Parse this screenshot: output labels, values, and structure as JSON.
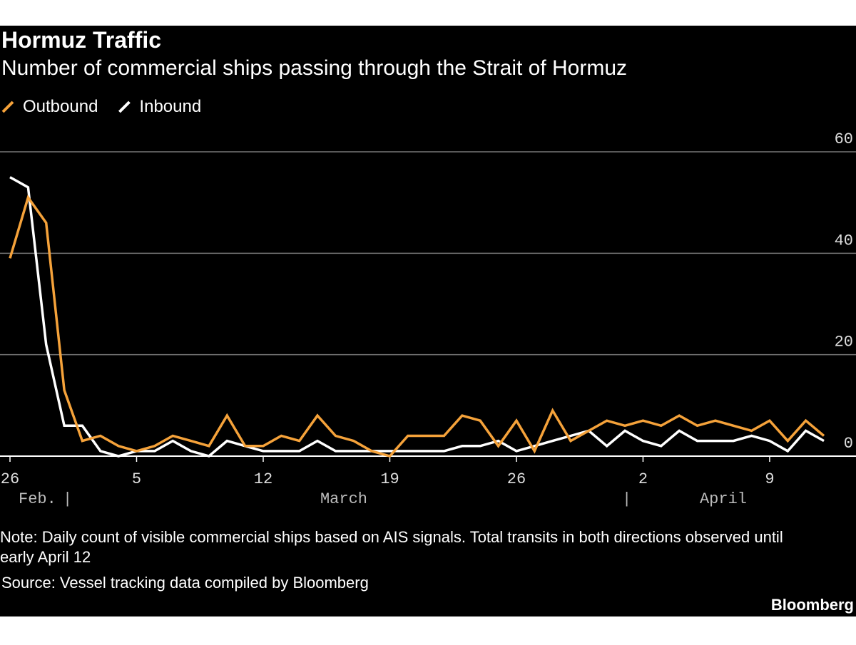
{
  "chart_data": {
    "type": "line",
    "title": "Hormuz Traffic",
    "subtitle": "Number of commercial ships passing through the Strait of Hormuz",
    "x": [
      "Feb 26",
      "Feb 27",
      "Feb 28",
      "Mar 1",
      "Mar 2",
      "Mar 3",
      "Mar 4",
      "Mar 5",
      "Mar 6",
      "Mar 7",
      "Mar 8",
      "Mar 9",
      "Mar 10",
      "Mar 11",
      "Mar 12",
      "Mar 13",
      "Mar 14",
      "Mar 15",
      "Mar 16",
      "Mar 17",
      "Mar 18",
      "Mar 19",
      "Mar 20",
      "Mar 21",
      "Mar 22",
      "Mar 23",
      "Mar 24",
      "Mar 25",
      "Mar 26",
      "Mar 27",
      "Mar 28",
      "Mar 29",
      "Mar 30",
      "Mar 31",
      "Apr 1",
      "Apr 2",
      "Apr 3",
      "Apr 4",
      "Apr 5",
      "Apr 6",
      "Apr 7",
      "Apr 8",
      "Apr 9",
      "Apr 10",
      "Apr 11",
      "Apr 12"
    ],
    "series": [
      {
        "name": "Outbound",
        "color": "#f5a23a",
        "values": [
          39,
          51,
          46,
          13,
          3,
          4,
          2,
          1,
          2,
          4,
          3,
          2,
          8,
          2,
          2,
          4,
          3,
          8,
          4,
          3,
          1,
          0,
          4,
          4,
          4,
          8,
          7,
          2,
          7,
          1,
          9,
          3,
          5,
          7,
          6,
          7,
          6,
          8,
          6,
          7,
          6,
          5,
          7,
          3,
          7,
          4
        ]
      },
      {
        "name": "Inbound",
        "color": "#ffffff",
        "values": [
          55,
          53,
          22,
          6,
          6,
          1,
          0,
          1,
          1,
          3,
          1,
          0,
          3,
          2,
          1,
          1,
          1,
          3,
          1,
          1,
          1,
          1,
          1,
          1,
          1,
          2,
          2,
          3,
          1,
          2,
          3,
          4,
          5,
          2,
          5,
          3,
          2,
          5,
          3,
          3,
          3,
          4,
          3,
          1,
          5,
          3
        ]
      }
    ],
    "ylim": [
      0,
      60
    ],
    "yticks": [
      0,
      20,
      40,
      60
    ],
    "xticks": [
      {
        "value": "Feb 26",
        "label": "26"
      },
      {
        "value": "Mar 5",
        "label": "5"
      },
      {
        "value": "Mar 12",
        "label": "12"
      },
      {
        "value": "Mar 19",
        "label": "19"
      },
      {
        "value": "Mar 26",
        "label": "26"
      },
      {
        "value": "Apr 2",
        "label": "2"
      },
      {
        "value": "Apr 9",
        "label": "9"
      }
    ],
    "months": [
      "Feb.",
      "March",
      "April"
    ],
    "grid": true,
    "note": "Note: Daily count of visible commercial ships based on AIS signals. Total transits in both directions observed until early April 12",
    "source": "Source: Vessel tracking data compiled by Bloomberg",
    "brand": "Bloomberg"
  }
}
